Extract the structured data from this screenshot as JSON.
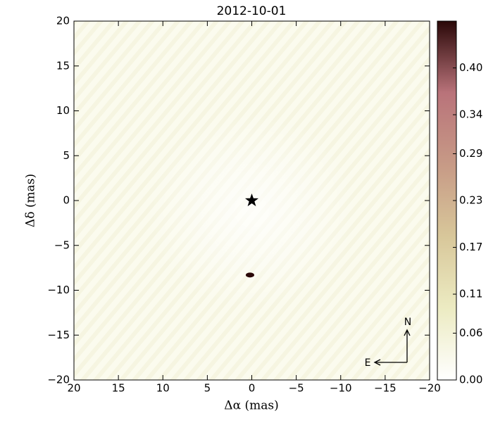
{
  "chart_data": {
    "type": "image",
    "title": "2012-10-01",
    "xlabel": "Δα (mas)",
    "ylabel": "Δδ (mas)",
    "xlim": [
      20,
      -20
    ],
    "ylim": [
      -20,
      20
    ],
    "xticks": [
      20,
      15,
      10,
      5,
      0,
      {
        "value": -5,
        "label": "−5"
      },
      {
        "value": -10,
        "label": "−10"
      },
      {
        "value": -15,
        "label": "−15"
      },
      {
        "value": -20,
        "label": "−20"
      }
    ],
    "yticks": [
      {
        "value": -20,
        "label": "−20"
      },
      {
        "value": -15,
        "label": "−15"
      },
      {
        "value": -10,
        "label": "−10"
      },
      {
        "value": -5,
        "label": "−5"
      },
      0,
      5,
      10,
      15,
      20
    ],
    "clim": [
      0,
      0.46
    ],
    "cticks": [
      {
        "value": 0,
        "label": "0.00"
      },
      0.06,
      0.11,
      0.17,
      0.23,
      0.29,
      0.34,
      {
        "value": 0.4,
        "label": "0.40"
      }
    ],
    "colormap": [
      "#ffffff",
      "#ecebc2",
      "#d8c79a",
      "#c79a86",
      "#b9737a",
      "#2a0808"
    ],
    "star": {
      "x": 0,
      "y": 0
    },
    "sources": [
      {
        "x": 0.2,
        "y": -8.3,
        "value": 0.46
      }
    ],
    "compass": {
      "north": "N",
      "east": "E"
    }
  }
}
